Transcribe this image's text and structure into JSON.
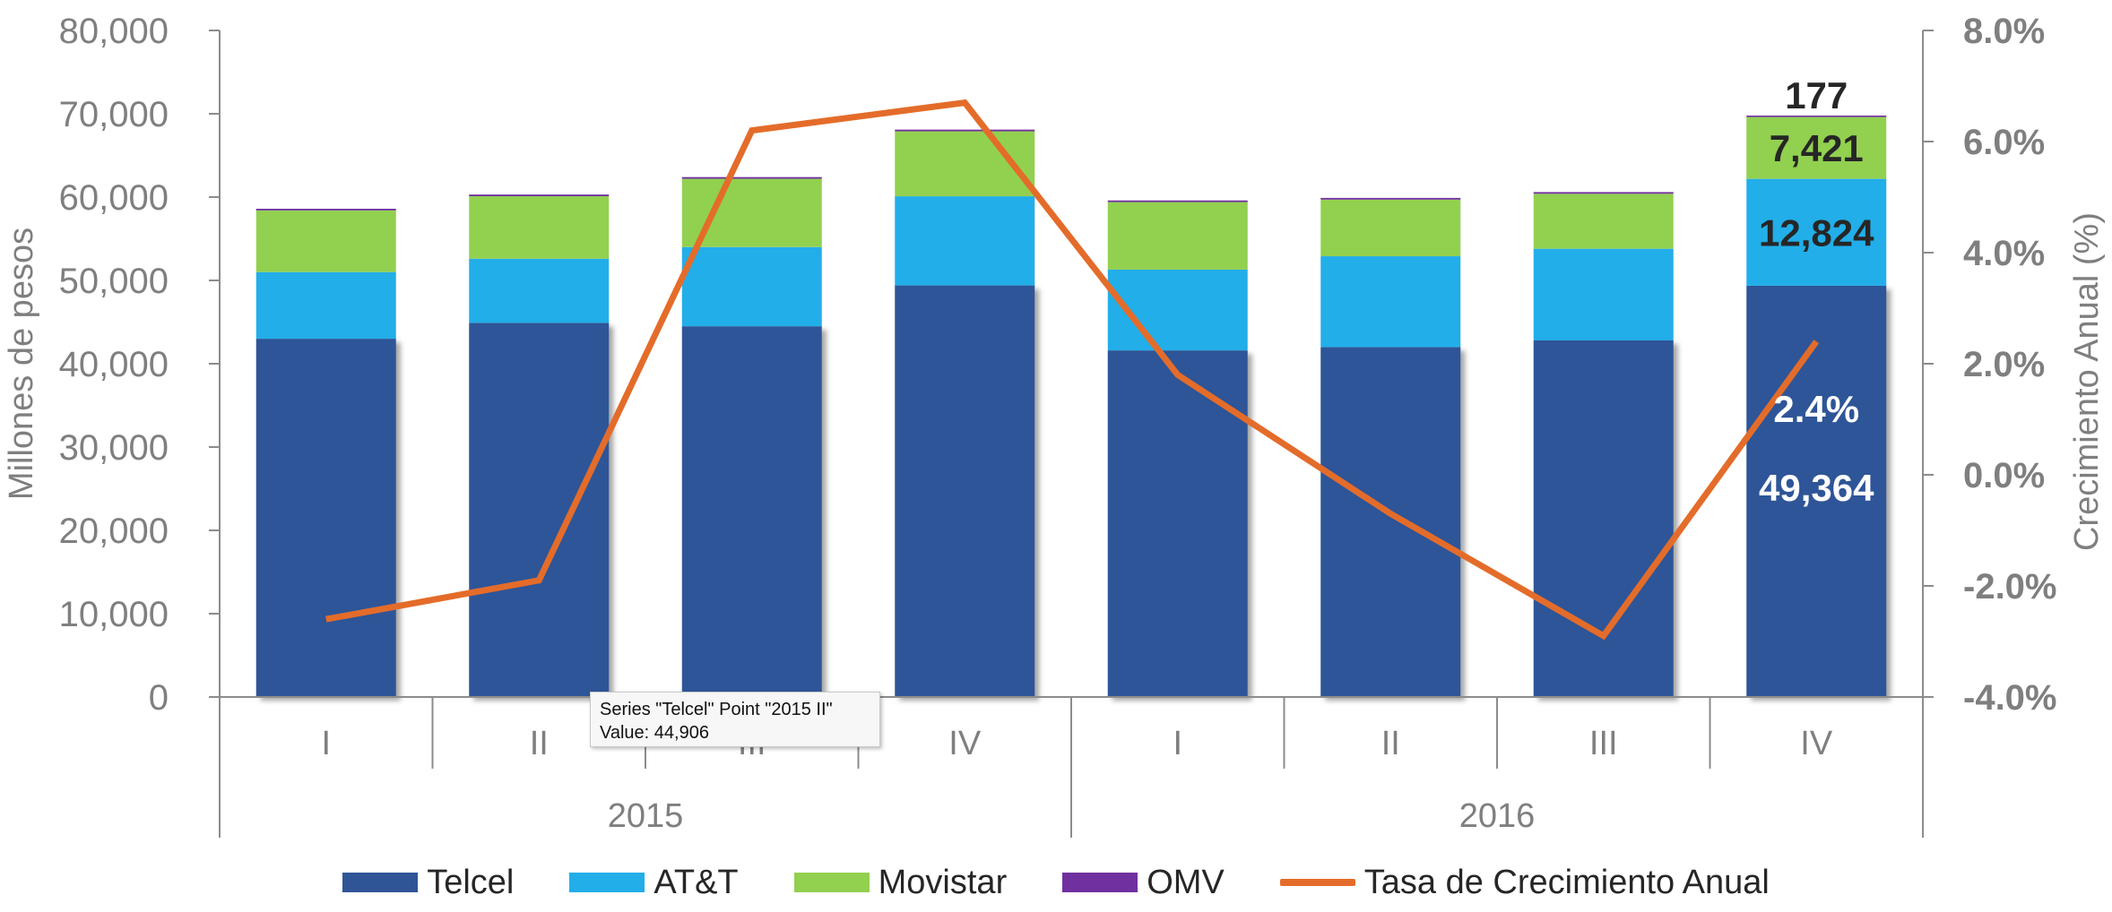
{
  "chart_data": {
    "type": "bar",
    "stacked": true,
    "categories": [
      "I",
      "II",
      "III",
      "IV",
      "I",
      "II",
      "III",
      "IV"
    ],
    "groups": [
      {
        "label": "2015",
        "span": 4
      },
      {
        "label": "2016",
        "span": 4
      }
    ],
    "series": [
      {
        "name": "Telcel",
        "color": "#2f5597",
        "values": [
          43000,
          44906,
          44500,
          49400,
          41600,
          42000,
          42800,
          49364
        ]
      },
      {
        "name": "AT&T",
        "color": "#22aee8",
        "values": [
          8000,
          7700,
          9500,
          10700,
          9700,
          10900,
          11000,
          12824
        ]
      },
      {
        "name": "Movistar",
        "color": "#92d050",
        "values": [
          7400,
          7500,
          8200,
          7800,
          8100,
          6800,
          6600,
          7421
        ]
      },
      {
        "name": "OMV",
        "color": "#7030a0",
        "values": [
          200,
          200,
          200,
          200,
          200,
          200,
          200,
          177
        ]
      }
    ],
    "line_series": {
      "name": "Tasa de Crecimiento Anual",
      "color": "#e46c2a",
      "axis": "right",
      "values": [
        -2.6,
        -1.9,
        6.2,
        6.7,
        1.8,
        -0.7,
        -2.9,
        2.4
      ]
    },
    "ylabel": "Millones de pesos",
    "y2label": "Crecimiento Anual (%)",
    "ylim": [
      0,
      80000
    ],
    "y2lim": [
      -4.0,
      8.0
    ],
    "yticks": [
      "0",
      "10,000",
      "20,000",
      "30,000",
      "40,000",
      "50,000",
      "60,000",
      "70,000",
      "80,000"
    ],
    "y2ticks": [
      "-4.0%",
      "-2.0%",
      "0.0%",
      "2.0%",
      "4.0%",
      "6.0%",
      "8.0%"
    ],
    "data_labels": [
      {
        "text": "177",
        "series": "OMV",
        "index": 7
      },
      {
        "text": "7,421",
        "series": "Movistar",
        "index": 7
      },
      {
        "text": "12,824",
        "series": "AT&T",
        "index": 7
      },
      {
        "text": "2.4%",
        "series": "Tasa de Crecimiento Anual",
        "index": 7
      },
      {
        "text": "49,364",
        "series": "Telcel",
        "index": 7
      }
    ],
    "legend_position": "bottom",
    "grid": false
  },
  "tooltip": {
    "line1": "Series \"Telcel\" Point \"2015 II\"",
    "line2": "Value: 44,906"
  }
}
